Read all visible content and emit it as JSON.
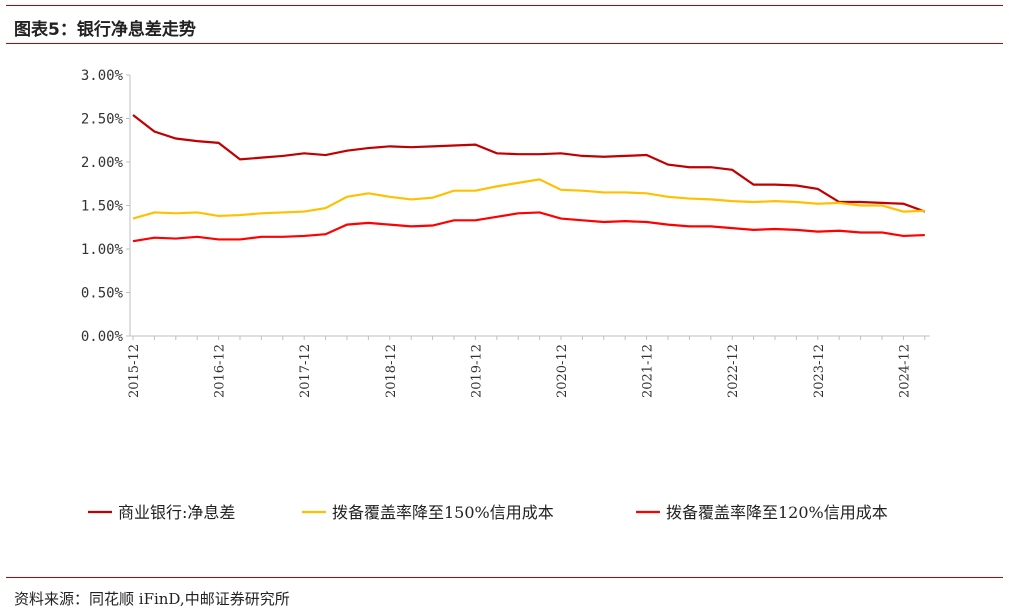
{
  "header": {
    "title": "图表5：银行净息差走势"
  },
  "footer": {
    "source": "资料来源：同花顺 iFinD,中邮证券研究所"
  },
  "chart_data": {
    "type": "line",
    "title": "银行净息差走势",
    "xlabel": "",
    "ylabel": "",
    "ylim": [
      0,
      3
    ],
    "yticks": [
      "0.00%",
      "0.50%",
      "1.00%",
      "1.50%",
      "2.00%",
      "2.50%",
      "3.00%"
    ],
    "xtick_labels": [
      "2015-12",
      "2016-12",
      "2017-12",
      "2018-12",
      "2019-12",
      "2020-12",
      "2021-12",
      "2022-12",
      "2023-12",
      "2024-12"
    ],
    "x": [
      "2015-12",
      "2016-03",
      "2016-06",
      "2016-09",
      "2016-12",
      "2017-03",
      "2017-06",
      "2017-09",
      "2017-12",
      "2018-03",
      "2018-06",
      "2018-09",
      "2018-12",
      "2019-03",
      "2019-06",
      "2019-09",
      "2019-12",
      "2020-03",
      "2020-06",
      "2020-09",
      "2020-12",
      "2021-03",
      "2021-06",
      "2021-09",
      "2021-12",
      "2022-03",
      "2022-06",
      "2022-09",
      "2022-12",
      "2023-03",
      "2023-06",
      "2023-09",
      "2023-12",
      "2024-03",
      "2024-06",
      "2024-09",
      "2024-12",
      "2025-03"
    ],
    "legend_position": "bottom",
    "series": [
      {
        "name": "商业银行:净息差",
        "color": "#c00000",
        "values": [
          2.54,
          2.35,
          2.27,
          2.24,
          2.22,
          2.03,
          2.05,
          2.07,
          2.1,
          2.08,
          2.13,
          2.16,
          2.18,
          2.17,
          2.18,
          2.19,
          2.2,
          2.1,
          2.09,
          2.09,
          2.1,
          2.07,
          2.06,
          2.07,
          2.08,
          1.97,
          1.94,
          1.94,
          1.91,
          1.74,
          1.74,
          1.73,
          1.69,
          1.54,
          1.54,
          1.53,
          1.52,
          1.43
        ]
      },
      {
        "name": "拨备覆盖率降至150%信用成本",
        "color": "#ffc000",
        "values": [
          1.35,
          1.42,
          1.41,
          1.42,
          1.38,
          1.39,
          1.41,
          1.42,
          1.43,
          1.47,
          1.6,
          1.64,
          1.6,
          1.57,
          1.59,
          1.67,
          1.67,
          1.72,
          1.76,
          1.8,
          1.68,
          1.67,
          1.65,
          1.65,
          1.64,
          1.6,
          1.58,
          1.57,
          1.55,
          1.54,
          1.55,
          1.54,
          1.52,
          1.53,
          1.5,
          1.5,
          1.43,
          1.44
        ]
      },
      {
        "name": "拨备覆盖率降至120%信用成本",
        "color": "#ff0000",
        "values": [
          1.09,
          1.13,
          1.12,
          1.14,
          1.11,
          1.11,
          1.14,
          1.14,
          1.15,
          1.17,
          1.28,
          1.3,
          1.28,
          1.26,
          1.27,
          1.33,
          1.33,
          1.37,
          1.41,
          1.42,
          1.35,
          1.33,
          1.31,
          1.32,
          1.31,
          1.28,
          1.26,
          1.26,
          1.24,
          1.22,
          1.23,
          1.22,
          1.2,
          1.21,
          1.19,
          1.19,
          1.15,
          1.16
        ]
      }
    ]
  }
}
